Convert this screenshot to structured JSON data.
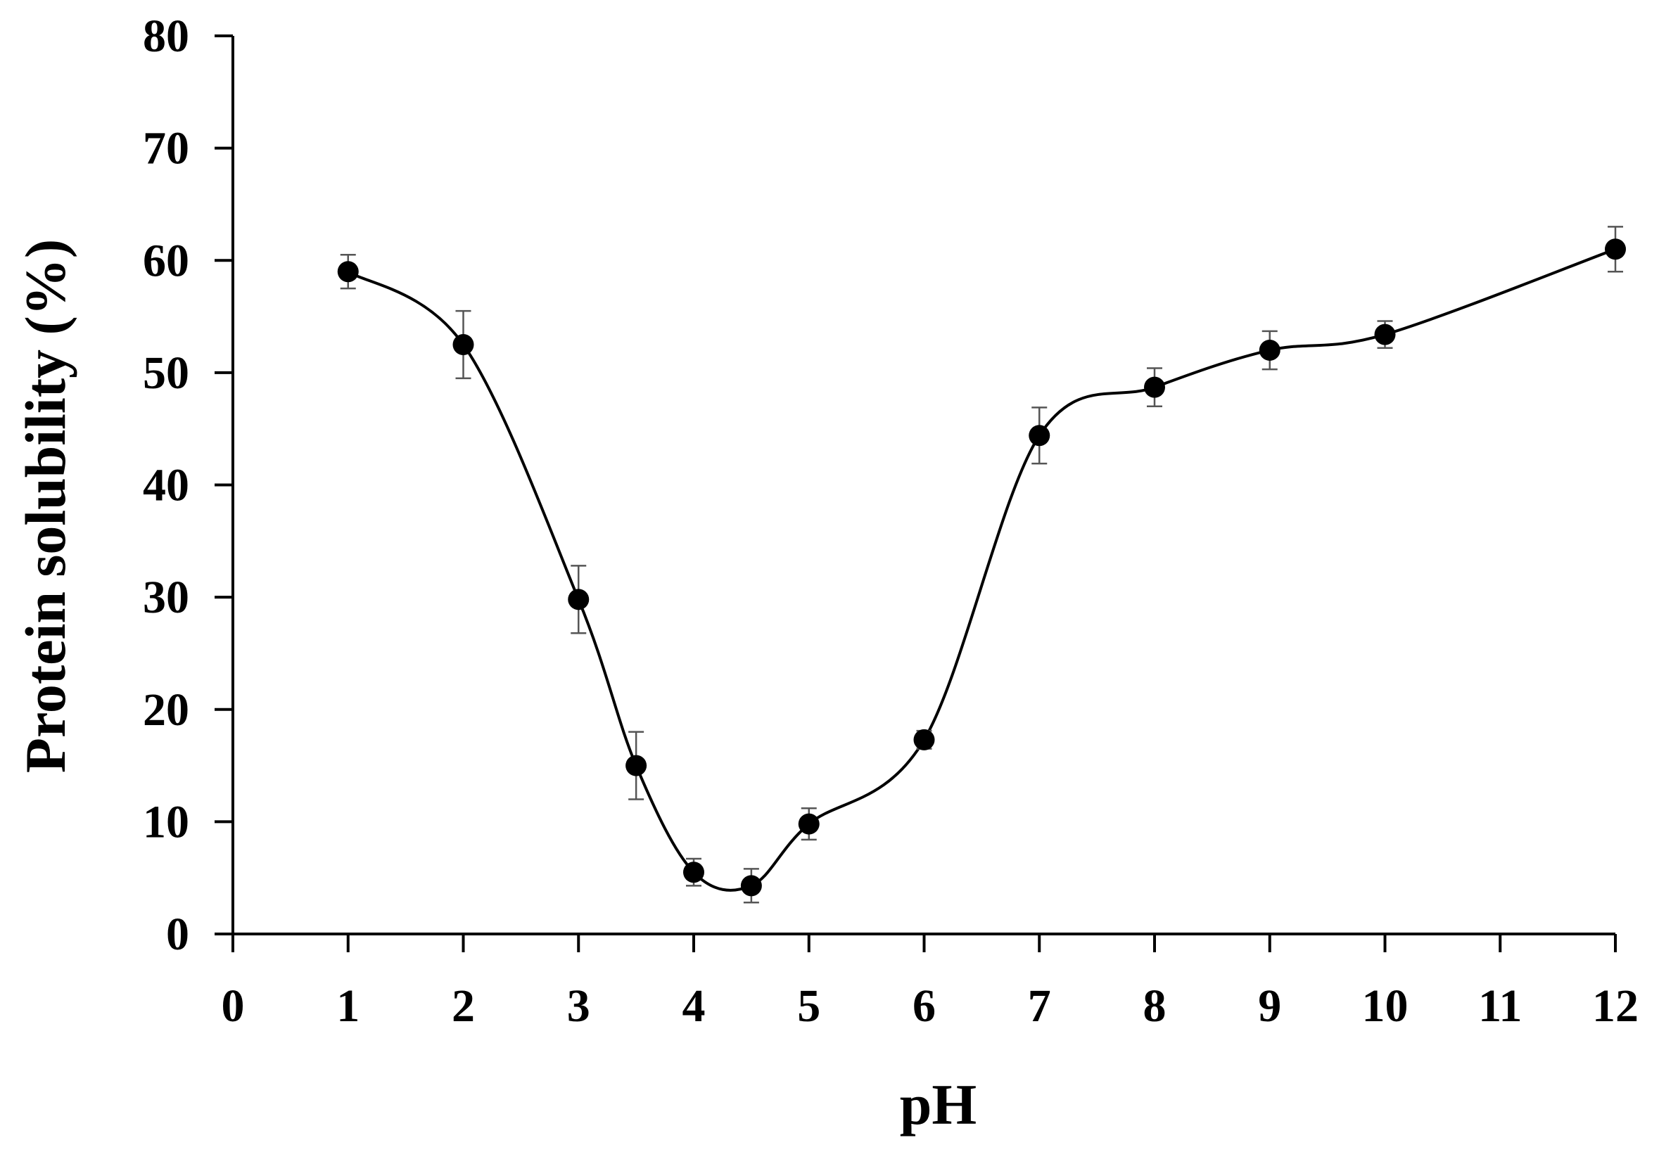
{
  "chart_data": {
    "type": "line",
    "title": "",
    "xlabel": "pH",
    "ylabel": "Protein solubility (%)",
    "xlim": [
      0,
      12
    ],
    "ylim": [
      0,
      80
    ],
    "x_ticks": [
      "0",
      "1",
      "2",
      "3",
      "4",
      "5",
      "6",
      "7",
      "8",
      "9",
      "10",
      "11",
      "12"
    ],
    "y_ticks": [
      "0",
      "10",
      "20",
      "30",
      "40",
      "50",
      "60",
      "70",
      "80"
    ],
    "grid": false,
    "smoothed": true,
    "series": [
      {
        "marker": "filled-circle",
        "color": "#000000",
        "points": [
          {
            "x": 1,
            "y": 59.0,
            "err": 1.5
          },
          {
            "x": 2,
            "y": 52.5,
            "err": 3.0
          },
          {
            "x": 3,
            "y": 29.8,
            "err": 3.0
          },
          {
            "x": 3.5,
            "y": 15.0,
            "err": 3.0
          },
          {
            "x": 4,
            "y": 5.5,
            "err": 1.2
          },
          {
            "x": 4.5,
            "y": 4.3,
            "err": 1.5
          },
          {
            "x": 5,
            "y": 9.8,
            "err": 1.4
          },
          {
            "x": 6,
            "y": 17.3,
            "err": 0.8
          },
          {
            "x": 7,
            "y": 44.4,
            "err": 2.5
          },
          {
            "x": 8,
            "y": 48.7,
            "err": 1.7
          },
          {
            "x": 9,
            "y": 52.0,
            "err": 1.7
          },
          {
            "x": 10,
            "y": 53.4,
            "err": 1.2
          },
          {
            "x": 12,
            "y": 61.0,
            "err": 2.0
          }
        ]
      }
    ]
  }
}
